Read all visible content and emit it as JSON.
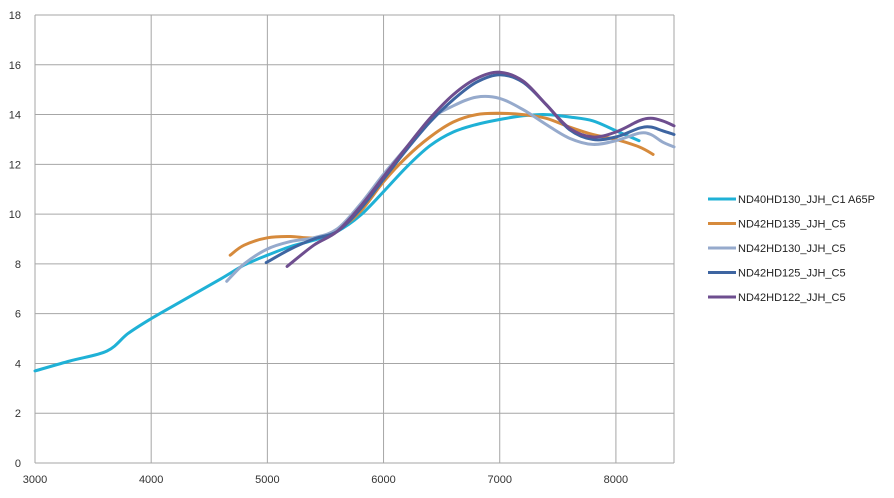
{
  "chart_data": {
    "type": "line",
    "title": "",
    "xlabel": "",
    "ylabel": "",
    "xlim": [
      3000,
      8500
    ],
    "ylim": [
      0,
      18
    ],
    "x_ticks": [
      "3000",
      "4000",
      "5000",
      "6000",
      "7000",
      "8000"
    ],
    "y_ticks": [
      "0",
      "2",
      "4",
      "6",
      "8",
      "10",
      "12",
      "14",
      "16",
      "18"
    ],
    "grid": true,
    "legend_position": "right",
    "series": [
      {
        "name": "ND40HD130_JJH_C1 A65P",
        "color": "#1fb1d6",
        "points": [
          [
            3000,
            3.7
          ],
          [
            3300,
            4.1
          ],
          [
            3620,
            4.5
          ],
          [
            3800,
            5.2
          ],
          [
            4000,
            5.8
          ],
          [
            4300,
            6.6
          ],
          [
            4600,
            7.4
          ],
          [
            4800,
            7.95
          ],
          [
            5000,
            8.35
          ],
          [
            5200,
            8.7
          ],
          [
            5400,
            8.95
          ],
          [
            5600,
            9.3
          ],
          [
            5800,
            9.95
          ],
          [
            6000,
            10.9
          ],
          [
            6200,
            11.9
          ],
          [
            6400,
            12.75
          ],
          [
            6600,
            13.3
          ],
          [
            6800,
            13.6
          ],
          [
            7000,
            13.8
          ],
          [
            7200,
            13.95
          ],
          [
            7400,
            14.0
          ],
          [
            7600,
            13.9
          ],
          [
            7800,
            13.75
          ],
          [
            8000,
            13.35
          ],
          [
            8200,
            12.95
          ]
        ]
      },
      {
        "name": "ND42HD135_JJH_C5",
        "color": "#d68a3c",
        "points": [
          [
            4680,
            8.35
          ],
          [
            4800,
            8.75
          ],
          [
            5000,
            9.05
          ],
          [
            5200,
            9.1
          ],
          [
            5400,
            9.05
          ],
          [
            5600,
            9.35
          ],
          [
            5800,
            10.1
          ],
          [
            6000,
            11.3
          ],
          [
            6200,
            12.3
          ],
          [
            6400,
            13.1
          ],
          [
            6600,
            13.7
          ],
          [
            6800,
            14.0
          ],
          [
            7000,
            14.05
          ],
          [
            7200,
            14.0
          ],
          [
            7400,
            13.85
          ],
          [
            7600,
            13.5
          ],
          [
            7800,
            13.2
          ],
          [
            8000,
            13.0
          ],
          [
            8200,
            12.7
          ],
          [
            8320,
            12.4
          ]
        ]
      },
      {
        "name": "ND42HD130_JJH_C5",
        "color": "#96aacc",
        "points": [
          [
            4650,
            7.3
          ],
          [
            4800,
            8.0
          ],
          [
            5000,
            8.6
          ],
          [
            5200,
            8.9
          ],
          [
            5400,
            9.05
          ],
          [
            5600,
            9.4
          ],
          [
            5800,
            10.4
          ],
          [
            6000,
            11.6
          ],
          [
            6200,
            12.7
          ],
          [
            6400,
            13.8
          ],
          [
            6600,
            14.35
          ],
          [
            6800,
            14.7
          ],
          [
            7000,
            14.65
          ],
          [
            7200,
            14.2
          ],
          [
            7400,
            13.6
          ],
          [
            7600,
            13.05
          ],
          [
            7800,
            12.8
          ],
          [
            8000,
            12.95
          ],
          [
            8200,
            13.25
          ],
          [
            8300,
            13.2
          ],
          [
            8400,
            12.9
          ],
          [
            8500,
            12.7
          ]
        ]
      },
      {
        "name": "ND42HD125_JJH_C5",
        "color": "#3e65a1",
        "points": [
          [
            4990,
            8.05
          ],
          [
            5200,
            8.6
          ],
          [
            5400,
            9.0
          ],
          [
            5600,
            9.3
          ],
          [
            5800,
            10.2
          ],
          [
            6000,
            11.4
          ],
          [
            6200,
            12.6
          ],
          [
            6400,
            13.7
          ],
          [
            6600,
            14.6
          ],
          [
            6800,
            15.3
          ],
          [
            7000,
            15.6
          ],
          [
            7200,
            15.3
          ],
          [
            7400,
            14.4
          ],
          [
            7600,
            13.4
          ],
          [
            7800,
            13.0
          ],
          [
            8000,
            13.1
          ],
          [
            8200,
            13.45
          ],
          [
            8300,
            13.5
          ],
          [
            8400,
            13.35
          ],
          [
            8500,
            13.2
          ]
        ]
      },
      {
        "name": "ND42HD122_JJH_C5",
        "color": "#6e4e8f",
        "points": [
          [
            5170,
            7.9
          ],
          [
            5400,
            8.75
          ],
          [
            5600,
            9.3
          ],
          [
            5800,
            10.3
          ],
          [
            6000,
            11.5
          ],
          [
            6200,
            12.7
          ],
          [
            6400,
            13.85
          ],
          [
            6600,
            14.8
          ],
          [
            6800,
            15.45
          ],
          [
            7000,
            15.7
          ],
          [
            7200,
            15.35
          ],
          [
            7400,
            14.4
          ],
          [
            7600,
            13.45
          ],
          [
            7800,
            13.1
          ],
          [
            8000,
            13.3
          ],
          [
            8200,
            13.75
          ],
          [
            8300,
            13.85
          ],
          [
            8400,
            13.75
          ],
          [
            8500,
            13.55
          ]
        ]
      }
    ]
  }
}
